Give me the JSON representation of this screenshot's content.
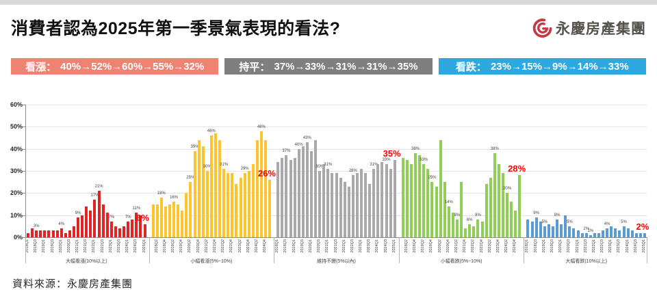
{
  "header": {
    "title": "消費者認為2025年第一季景氣表現的看法?",
    "logo_text": "永慶房產集團"
  },
  "summary_bands": [
    {
      "label": "看漲：",
      "values": "40%→52%→60%→55%→32%",
      "bg": "#ee8373",
      "text_color": "#ffffff"
    },
    {
      "label": "持平：",
      "values": "37%→33%→31%→31%→35%",
      "bg": "#7f7f7f",
      "text_color": "#ffffff"
    },
    {
      "label": "看跌：",
      "values": "23%→15%→9%→14%→33%",
      "bg": "#2ea9e0",
      "text_color": "#ffffff"
    }
  ],
  "footer": {
    "source": "資料來源：永慶房產集團"
  },
  "chart_data": {
    "type": "bar",
    "ylim": [
      0,
      60
    ],
    "yticks": [
      "0%",
      "10%",
      "20%",
      "30%",
      "40%",
      "50%",
      "60%"
    ],
    "grid": true,
    "highlight_color": "#ff0000",
    "quarters": [
      "2018Q1",
      "2018Q2",
      "2018Q3",
      "2018Q4",
      "2019Q1",
      "2019Q2",
      "2019Q3",
      "2019Q4",
      "2020Q1",
      "2020Q2",
      "2020Q3",
      "2020Q4",
      "2021Q1",
      "2021Q2",
      "2021Q3",
      "2021Q4",
      "2022Q1",
      "2022Q2",
      "2022Q3",
      "2022Q4",
      "2023Q1",
      "2023Q2",
      "2023Q3",
      "2023Q4",
      "2024Q1",
      "2024Q2",
      "2024Q3",
      "2024Q4",
      "2025Q1"
    ],
    "groups": [
      {
        "name": "大幅看漲(10%以上)",
        "color": "#e02424",
        "tick_parity": 0,
        "values": [
          2,
          4,
          3,
          3,
          3,
          3,
          3,
          3,
          4,
          2,
          3,
          5,
          9,
          10,
          14,
          12,
          17,
          21,
          15,
          11,
          7,
          5,
          4,
          5,
          7,
          8,
          11,
          10,
          6
        ],
        "labels": {
          "2": "3%",
          "8": "4%",
          "12": "9%",
          "16": "17%",
          "17": "21%",
          "20": "7%",
          "24": "7%",
          "26": "11%"
        },
        "final_label": "6%"
      },
      {
        "name": "小幅看漲(5%~10%)",
        "color": "#fdc42d",
        "tick_parity": 1,
        "values": [
          15,
          15,
          18,
          14,
          15,
          16,
          15,
          12,
          20,
          25,
          39,
          44,
          41,
          30,
          46,
          47,
          44,
          31,
          29,
          29,
          24,
          27,
          29,
          30,
          33,
          44,
          48,
          44,
          26
        ],
        "labels": {
          "2": "18%",
          "5": "16%",
          "9": "25%",
          "10": "39%",
          "13": "30%",
          "14": "46%",
          "17": "31%",
          "22": "29%",
          "26": "48%"
        },
        "final_label": "26%"
      },
      {
        "name": "維持不變(5%以內)",
        "color": "#a9a9a9",
        "tick_parity": 0,
        "values": [
          34,
          36,
          37,
          35,
          36,
          40,
          41,
          43,
          39,
          44,
          30,
          33,
          31,
          29,
          29,
          27,
          25,
          23,
          28,
          29,
          31,
          29,
          24,
          31,
          33,
          34,
          33,
          31,
          35
        ],
        "labels": {
          "2": "37%",
          "5": "40%",
          "7": "43%",
          "10": "30%",
          "12": "31%",
          "18": "28%",
          "23": "31%",
          "26": "33%"
        },
        "final_label": "35%"
      },
      {
        "name": "小幅看跌(5%~10%)",
        "color": "#90cf55",
        "tick_parity": 1,
        "values": [
          36,
          35,
          33,
          38,
          37,
          33,
          31,
          25,
          23,
          44,
          25,
          14,
          11,
          8,
          25,
          4,
          6,
          5,
          8,
          7,
          24,
          27,
          38,
          33,
          29,
          20,
          16,
          12,
          28
        ],
        "labels": {
          "3": "38%",
          "5": "33%",
          "7": "25%",
          "11": "14%",
          "13": "8%",
          "16": "6%",
          "18": "8%",
          "22": "38%",
          "25": "20%"
        },
        "final_label": "28%"
      },
      {
        "name": "大幅看跌(10%以上)",
        "color": "#5b9bd5",
        "tick_parity": 0,
        "values": [
          8,
          7,
          9,
          7,
          5,
          6,
          5,
          8,
          6,
          10,
          5,
          4,
          3,
          2,
          2,
          1,
          2,
          2,
          3,
          4,
          5,
          4,
          3,
          5,
          4,
          3,
          2,
          2,
          2
        ],
        "labels": {
          "2": "9%",
          "4": "5%",
          "7": "8%",
          "10": "5%",
          "14": "2%",
          "15": "1%",
          "19": "4%",
          "23": "5%"
        },
        "final_label": "2%"
      }
    ]
  }
}
